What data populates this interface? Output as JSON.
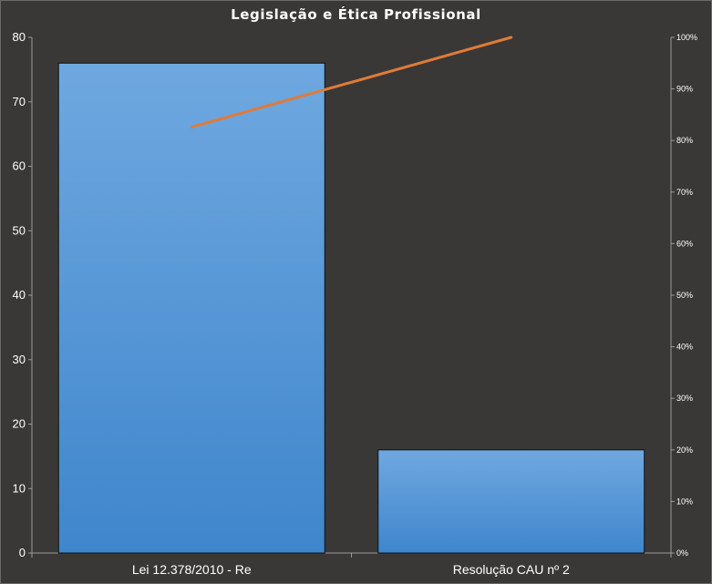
{
  "chart_data": {
    "type": "bar",
    "title": "Legislação e Ética Profissional",
    "categories": [
      "Lei 12.378/2010 - Re",
      "Resolução CAU nº 2"
    ],
    "values": [
      76,
      16
    ],
    "cumulative_percent": [
      82.6,
      100
    ],
    "ylim": [
      0,
      80
    ],
    "y_ticks": [
      "0",
      "10",
      "20",
      "30",
      "40",
      "50",
      "60",
      "70",
      "80"
    ],
    "y2lim": [
      0,
      100
    ],
    "y2_ticks": [
      "0%",
      "10%",
      "20%",
      "30%",
      "40%",
      "50%",
      "60%",
      "70%",
      "80%",
      "90%",
      "100%"
    ],
    "grid": false,
    "colors": {
      "bar_top": "#6fa8e0",
      "bar_bottom": "#3f86cc",
      "line": "#e07b39",
      "background": "#3a3836"
    }
  }
}
